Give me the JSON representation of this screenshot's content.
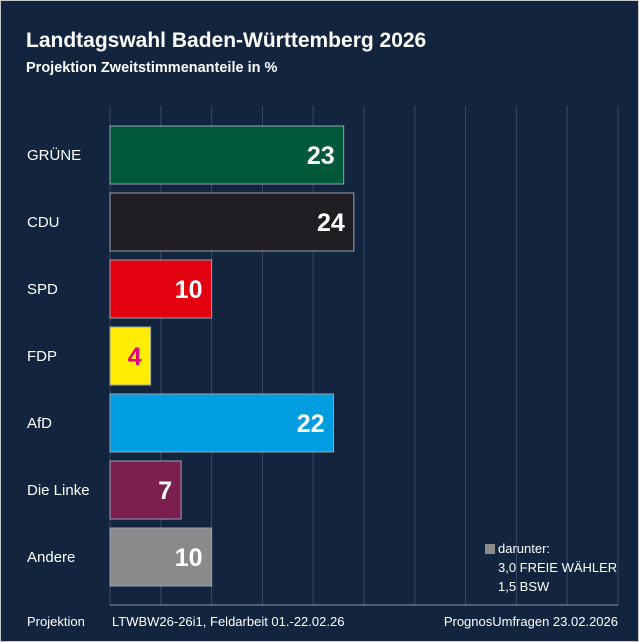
{
  "chart_data": {
    "type": "bar",
    "orientation": "horizontal",
    "title": "Landtagswahl Baden-Württemberg 2026",
    "subtitle": "Projektion Zweitstimmenanteile in %",
    "categories": [
      "GRÜNE",
      "CDU",
      "SPD",
      "FDP",
      "AfD",
      "Die Linke",
      "Andere"
    ],
    "values": [
      23,
      24,
      10,
      4,
      22,
      7,
      10
    ],
    "colors": [
      "#005a3a",
      "#1f1d21",
      "#e3000f",
      "#ffed00",
      "#009ee0",
      "#7b1f4e",
      "#8a8a8a"
    ],
    "label_colors": [
      "#ffffff",
      "#ffffff",
      "#ffffff",
      "#e5007d",
      "#ffffff",
      "#ffffff",
      "#ffffff"
    ],
    "xlim": [
      0,
      50
    ],
    "grid": true,
    "note": {
      "heading": "darunter:",
      "lines": [
        "3,0 FREIE WÄHLER",
        "1,5 BSW"
      ]
    }
  },
  "footer": {
    "left": "Projektion",
    "middle": "LTWBW26-26i1, Feldarbeit 01.-22.02.26",
    "right": "PrognosUmfragen 23.02.2026"
  }
}
